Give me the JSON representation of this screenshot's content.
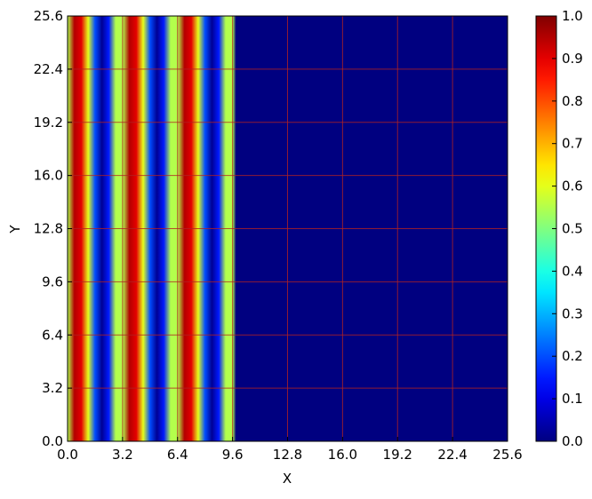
{
  "chart_data": {
    "type": "heatmap",
    "title": "",
    "xlabel": "X",
    "ylabel": "Y",
    "xlim": [
      0,
      25.6
    ],
    "ylim": [
      0,
      25.6
    ],
    "x_ticks": [
      "0.0",
      "3.2",
      "6.4",
      "9.6",
      "12.8",
      "16.0",
      "19.2",
      "22.4",
      "25.6"
    ],
    "y_ticks": [
      "0.0",
      "3.2",
      "6.4",
      "9.6",
      "12.8",
      "16.0",
      "19.2",
      "22.4",
      "25.6"
    ],
    "colormap": "jet",
    "colorbar": {
      "range": [
        0,
        1
      ],
      "ticks": [
        "0.0",
        "0.1",
        "0.2",
        "0.3",
        "0.4",
        "0.5",
        "0.6",
        "0.7",
        "0.8",
        "0.9",
        "1.0"
      ]
    },
    "grid": true,
    "grid_color": "#b22222",
    "field": {
      "description_of_values": "value varies only with x; constant along y",
      "x": [
        0.0,
        0.4,
        0.8,
        1.2,
        1.6,
        2.0,
        2.4,
        2.8,
        3.2,
        3.6,
        4.0,
        4.4,
        4.8,
        5.2,
        5.6,
        6.0,
        6.4,
        6.8,
        7.2,
        7.6,
        8.0,
        8.4,
        8.8,
        9.2,
        9.6,
        9.8,
        10.0,
        25.6
      ],
      "value": [
        0.55,
        0.95,
        0.9,
        0.6,
        0.2,
        0.02,
        0.15,
        0.55,
        0.55,
        0.95,
        0.9,
        0.6,
        0.2,
        0.02,
        0.15,
        0.55,
        0.55,
        0.95,
        0.9,
        0.6,
        0.2,
        0.02,
        0.15,
        0.55,
        0.55,
        0.0,
        0.0,
        0.0
      ]
    }
  }
}
